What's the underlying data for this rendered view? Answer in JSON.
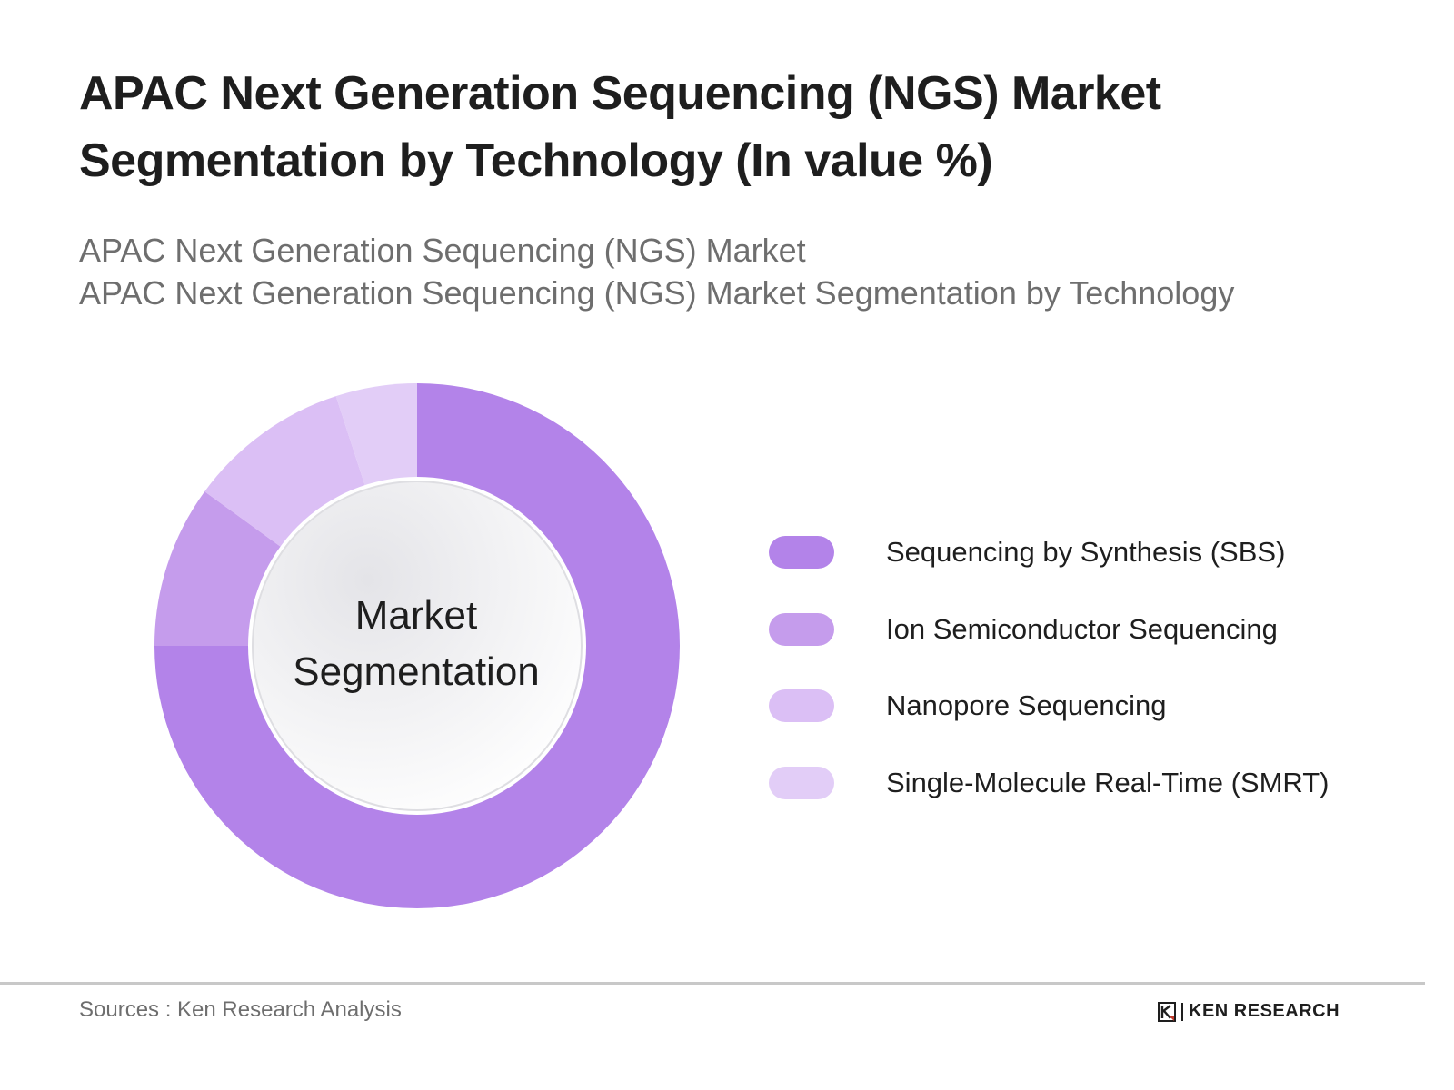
{
  "header": {
    "title_line1": "APAC Next Generation Sequencing (NGS) Market",
    "title_line2": "Segmentation by Technology (In value %)",
    "subtitle_line1": "APAC Next Generation Sequencing (NGS) Market",
    "subtitle_line2": "APAC Next Generation Sequencing (NGS) Market Segmentation by Technology"
  },
  "chart_data": {
    "type": "pie",
    "variant": "donut",
    "title": "APAC Next Generation Sequencing (NGS) Market Segmentation by Technology (In value %)",
    "center_label": [
      "Market",
      "Segmentation"
    ],
    "categories": [
      "Sequencing by Synthesis (SBS)",
      "Ion Semiconductor Sequencing",
      "Nanopore Sequencing",
      "Single-Molecule Real-Time (SMRT)"
    ],
    "values": [
      75,
      10,
      10,
      5
    ],
    "colors": [
      "#b383e9",
      "#c59cec",
      "#dbbff5",
      "#e2cdf7"
    ],
    "unit": "%",
    "legend_position": "right",
    "start_angle_deg": 0,
    "direction": "clockwise"
  },
  "legend": {
    "items": [
      {
        "label": "Sequencing by Synthesis (SBS)",
        "color": "#b383e9"
      },
      {
        "label": "Ion Semiconductor Sequencing",
        "color": "#c59cec"
      },
      {
        "label": "Nanopore Sequencing",
        "color": "#dbbff5"
      },
      {
        "label": "Single-Molecule Real-Time (SMRT)",
        "color": "#e2cdf7"
      }
    ]
  },
  "center": {
    "line1": "Market",
    "line2": "Segmentation"
  },
  "footer": {
    "source": "Sources : Ken Research Analysis",
    "logo_text": "KEN RESEARCH",
    "logo_mark": "K"
  }
}
